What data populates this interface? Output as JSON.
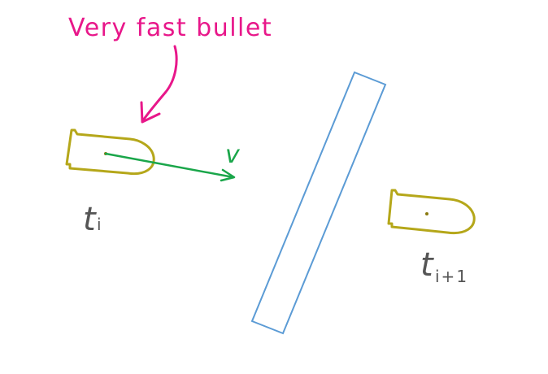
{
  "annotation": {
    "text": "Very fast bullet"
  },
  "labels": {
    "velocity": "v",
    "time_before_base": "t",
    "time_before_sub": "i",
    "time_after_base": "t",
    "time_after_sub": "i+1"
  },
  "colors": {
    "annotation": "#e8178a",
    "bullet": "#b5a71a",
    "velocity": "#1aa64a",
    "wall": "#5b9bd5",
    "label": "#555555",
    "center_dot": "#8a7a10"
  }
}
